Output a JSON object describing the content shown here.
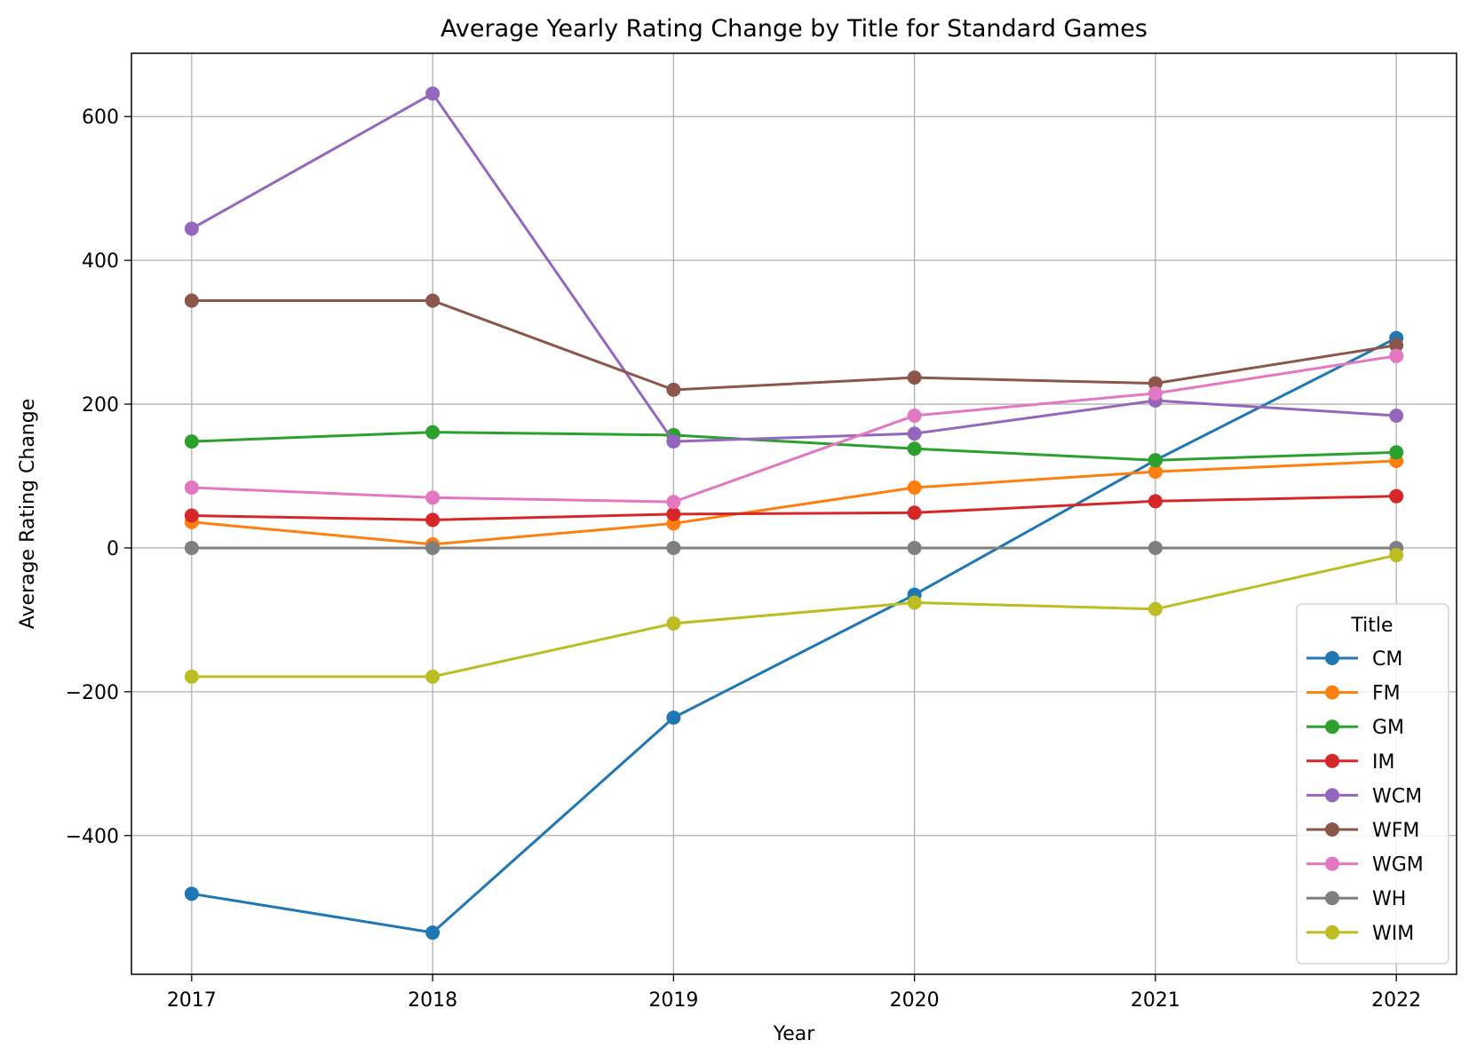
{
  "chart_data": {
    "type": "line",
    "title": "Average Yearly Rating Change by Title for Standard Games",
    "xlabel": "Year",
    "ylabel": "Average Rating Change",
    "x": [
      2017,
      2018,
      2019,
      2020,
      2021,
      2022
    ],
    "x_tick_labels": [
      "2017",
      "2018",
      "2019",
      "2020",
      "2021",
      "2022"
    ],
    "xlim": [
      2016.75,
      2022.25
    ],
    "ylim": [
      -593,
      688
    ],
    "y_ticks": [
      -400,
      -200,
      0,
      200,
      400,
      600
    ],
    "y_tick_labels": [
      "−400",
      "−200",
      "0",
      "200",
      "400",
      "600"
    ],
    "grid": true,
    "legend_title": "Title",
    "legend_position": "lower-right",
    "series": [
      {
        "name": "CM",
        "color": "#1f77b4",
        "values": [
          -481,
          -535,
          -236,
          -65,
          122,
          292
        ]
      },
      {
        "name": "FM",
        "color": "#ff7f0e",
        "values": [
          36,
          5,
          34,
          84,
          106,
          121
        ]
      },
      {
        "name": "GM",
        "color": "#2ca02c",
        "values": [
          148,
          161,
          157,
          138,
          122,
          133
        ]
      },
      {
        "name": "IM",
        "color": "#d62728",
        "values": [
          45,
          39,
          47,
          49,
          65,
          72
        ]
      },
      {
        "name": "WCM",
        "color": "#9467bd",
        "values": [
          444,
          632,
          148,
          159,
          205,
          184
        ]
      },
      {
        "name": "WFM",
        "color": "#8c564b",
        "values": [
          344,
          344,
          220,
          237,
          229,
          282
        ]
      },
      {
        "name": "WGM",
        "color": "#e377c2",
        "values": [
          84,
          70,
          64,
          184,
          215,
          267
        ]
      },
      {
        "name": "WH",
        "color": "#7f7f7f",
        "values": [
          0,
          0,
          0,
          0,
          0,
          0
        ]
      },
      {
        "name": "WIM",
        "color": "#bcbd22",
        "values": [
          -179,
          -179,
          -105,
          -76,
          -85,
          -10
        ]
      }
    ]
  }
}
